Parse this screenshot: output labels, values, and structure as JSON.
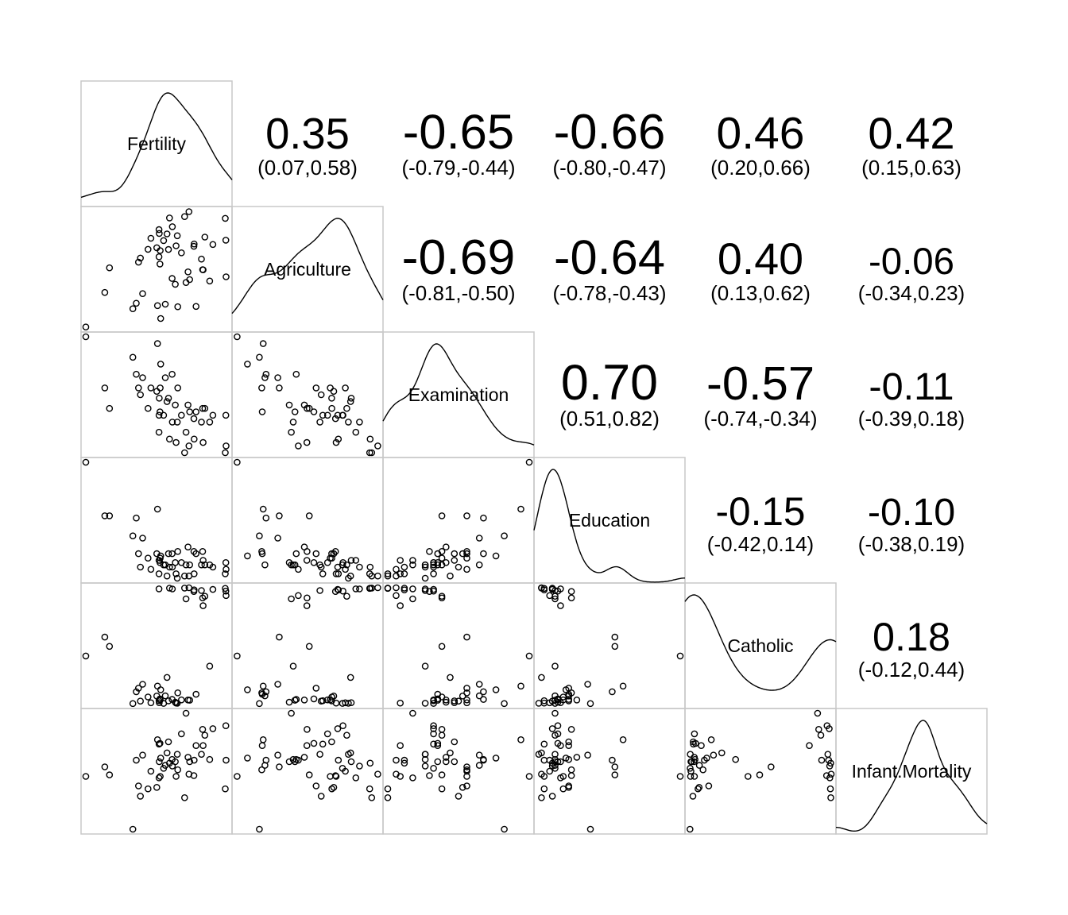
{
  "chart_data": {
    "type": "scatter-matrix",
    "variables": [
      "Fertility",
      "Agriculture",
      "Examination",
      "Education",
      "Catholic",
      "Infant.Mortality"
    ],
    "ranges": [
      [
        35,
        93
      ],
      [
        1,
        90
      ],
      [
        3,
        37
      ],
      [
        1,
        53
      ],
      [
        2,
        100
      ],
      [
        10.8,
        26.6
      ]
    ],
    "correlations": [
      {
        "row": 0,
        "col": 1,
        "r": "0.35",
        "ci": "(0.07,0.58)"
      },
      {
        "row": 0,
        "col": 2,
        "r": "-0.65",
        "ci": "(-0.79,-0.44)"
      },
      {
        "row": 0,
        "col": 3,
        "r": "-0.66",
        "ci": "(-0.80,-0.47)"
      },
      {
        "row": 0,
        "col": 4,
        "r": "0.46",
        "ci": "(0.20,0.66)"
      },
      {
        "row": 0,
        "col": 5,
        "r": "0.42",
        "ci": "(0.15,0.63)"
      },
      {
        "row": 1,
        "col": 2,
        "r": "-0.69",
        "ci": "(-0.81,-0.50)"
      },
      {
        "row": 1,
        "col": 3,
        "r": "-0.64",
        "ci": "(-0.78,-0.43)"
      },
      {
        "row": 1,
        "col": 4,
        "r": "0.40",
        "ci": "(0.13,0.62)"
      },
      {
        "row": 1,
        "col": 5,
        "r": "-0.06",
        "ci": "(-0.34,0.23)"
      },
      {
        "row": 2,
        "col": 3,
        "r": "0.70",
        "ci": "(0.51,0.82)"
      },
      {
        "row": 2,
        "col": 4,
        "r": "-0.57",
        "ci": "(-0.74,-0.34)"
      },
      {
        "row": 2,
        "col": 5,
        "r": "-0.11",
        "ci": "(-0.39,0.18)"
      },
      {
        "row": 3,
        "col": 4,
        "r": "-0.15",
        "ci": "(-0.42,0.14)"
      },
      {
        "row": 3,
        "col": 5,
        "r": "-0.10",
        "ci": "(-0.38,0.19)"
      },
      {
        "row": 4,
        "col": 5,
        "r": "0.18",
        "ci": "(-0.12,0.44)"
      }
    ],
    "observations": [
      [
        80.2,
        17.0,
        15,
        12,
        9.96,
        22.2
      ],
      [
        83.1,
        45.1,
        6,
        9,
        84.84,
        22.2
      ],
      [
        92.5,
        39.7,
        5,
        5,
        93.4,
        20.2
      ],
      [
        85.8,
        36.5,
        12,
        7,
        33.77,
        20.3
      ],
      [
        76.9,
        43.5,
        17,
        15,
        5.16,
        20.6
      ],
      [
        76.1,
        35.3,
        9,
        7,
        90.57,
        26.6
      ],
      [
        83.8,
        70.2,
        16,
        7,
        92.85,
        23.6
      ],
      [
        92.4,
        67.8,
        14,
        8,
        97.16,
        24.9
      ],
      [
        82.4,
        53.3,
        12,
        7,
        97.67,
        21.0
      ],
      [
        82.9,
        45.2,
        16,
        13,
        91.38,
        24.4
      ],
      [
        87.1,
        64.5,
        14,
        6,
        98.61,
        24.5
      ],
      [
        64.1,
        62.0,
        21,
        12,
        8.52,
        16.5
      ],
      [
        66.9,
        67.5,
        14,
        7,
        2.27,
        19.1
      ],
      [
        68.9,
        60.7,
        19,
        12,
        4.43,
        22.7
      ],
      [
        61.7,
        69.3,
        22,
        5,
        2.82,
        18.7
      ],
      [
        68.3,
        72.6,
        18,
        2,
        24.2,
        21.2
      ],
      [
        71.7,
        34.0,
        17,
        8,
        3.3,
        20.0
      ],
      [
        55.7,
        19.4,
        26,
        28,
        12.11,
        20.2
      ],
      [
        54.3,
        15.2,
        31,
        20,
        2.15,
        10.8
      ],
      [
        65.1,
        73.0,
        19,
        9,
        2.84,
        20.0
      ],
      [
        65.5,
        59.8,
        22,
        10,
        5.23,
        18.0
      ],
      [
        65.0,
        55.1,
        14,
        3,
        4.52,
        22.4
      ],
      [
        56.6,
        50.9,
        22,
        12,
        15.14,
        16.7
      ],
      [
        57.4,
        54.1,
        20,
        6,
        4.2,
        15.3
      ],
      [
        72.5,
        71.2,
        12,
        1,
        2.4,
        21.0
      ],
      [
        74.2,
        58.1,
        14,
        8,
        5.23,
        23.8
      ],
      [
        72.0,
        63.5,
        6,
        3,
        2.56,
        18.0
      ],
      [
        60.5,
        60.8,
        16,
        10,
        7.72,
        16.3
      ],
      [
        58.3,
        26.8,
        25,
        19,
        18.46,
        20.9
      ],
      [
        65.4,
        49.5,
        15,
        8,
        6.1,
        22.5
      ],
      [
        75.5,
        85.9,
        3,
        2,
        99.71,
        15.1
      ],
      [
        69.3,
        84.9,
        7,
        6,
        99.68,
        19.8
      ],
      [
        77.3,
        89.7,
        5,
        2,
        100.0,
        18.3
      ],
      [
        70.5,
        78.2,
        12,
        6,
        98.96,
        19.4
      ],
      [
        79.4,
        64.9,
        7,
        3,
        98.22,
        20.2
      ],
      [
        65.0,
        75.9,
        9,
        9,
        99.06,
        17.8
      ],
      [
        92.2,
        84.6,
        3,
        3,
        99.46,
        16.3
      ],
      [
        79.3,
        63.1,
        13,
        13,
        96.83,
        18.1
      ],
      [
        70.4,
        38.4,
        26,
        12,
        5.62,
        20.3
      ],
      [
        65.7,
        7.7,
        29,
        11,
        13.79,
        20.5
      ],
      [
        72.7,
        16.7,
        22,
        13,
        11.22,
        18.9
      ],
      [
        64.4,
        17.6,
        35,
        32,
        16.92,
        23.0
      ],
      [
        77.6,
        37.6,
        15,
        7,
        4.97,
        20.0
      ],
      [
        67.6,
        18.7,
        25,
        7,
        8.65,
        19.5
      ],
      [
        35.0,
        1.2,
        37,
        53,
        42.34,
        18.0
      ],
      [
        44.7,
        46.6,
        16,
        29,
        50.43,
        18.2
      ],
      [
        42.8,
        27.7,
        22,
        29,
        58.33,
        19.3
      ]
    ]
  }
}
